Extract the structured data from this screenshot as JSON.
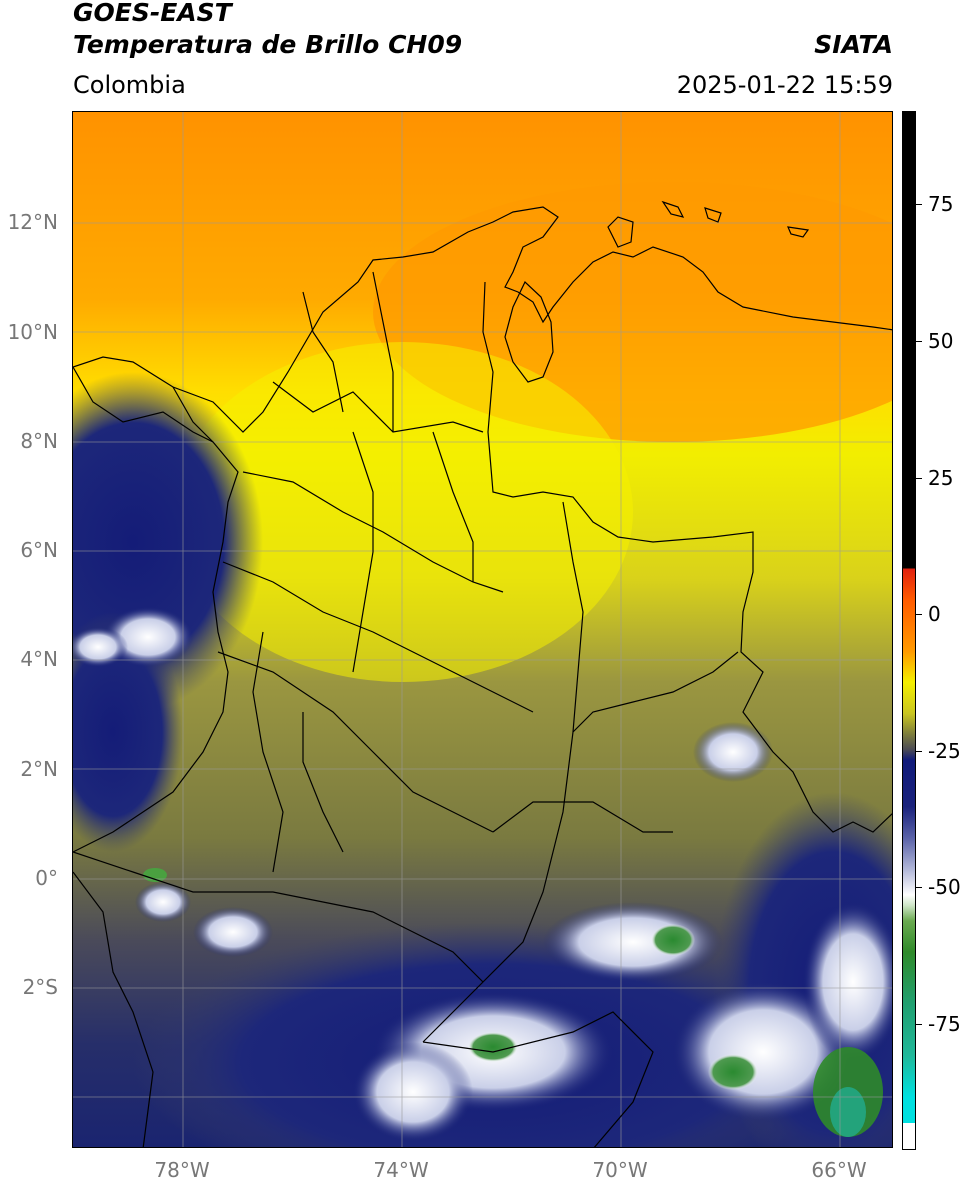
{
  "header": {
    "title_line1": "GOES-EAST",
    "title_line2": "Temperatura de Brillo CH09",
    "brand": "SIATA",
    "region": "Colombia",
    "datetime": "2025-01-22 15:59"
  },
  "map": {
    "lat_labels": [
      "12°N",
      "10°N",
      "8°N",
      "6°N",
      "4°N",
      "2°N",
      "0°",
      "2°S"
    ],
    "lon_labels": [
      "78°W",
      "74°W",
      "70°W",
      "66°W"
    ]
  },
  "colorbar": {
    "tick_labels": [
      "75",
      "50",
      "25",
      "0",
      "-25",
      "-50",
      "-75"
    ],
    "range": [
      -95,
      90
    ],
    "colors": {
      "black": "#000000",
      "red": "#e02010",
      "orange": "#ff9a00",
      "yellow": "#f4ef00",
      "olive": "#7d7d3c",
      "navy": "#101a7a",
      "white": "#ffffff",
      "green": "#2f8a2a",
      "teal": "#20b89a",
      "cyan": "#00e0e0"
    }
  }
}
